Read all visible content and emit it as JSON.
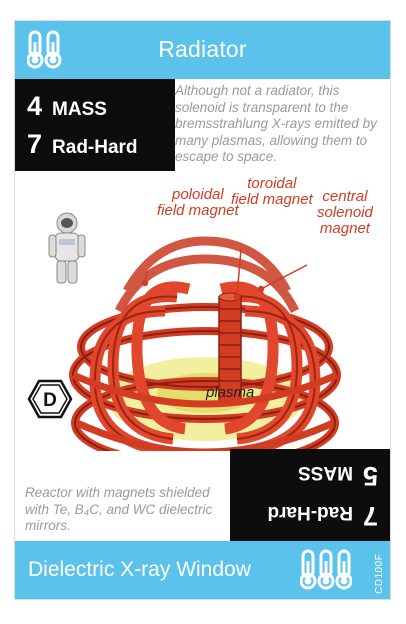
{
  "card": {
    "type_label": "Radiator",
    "name": "Dielectric X-ray Window",
    "code": "CD100F",
    "stats": [
      {
        "value": "4",
        "label": "MASS"
      },
      {
        "value": "7",
        "label": "Rad-Hard"
      }
    ],
    "stats_inverted": [
      {
        "value": "7",
        "label": "Rad-Hard"
      },
      {
        "value": "5",
        "label": "MASS"
      }
    ],
    "flavor_text": "Although not a radiator, this solenoid is transparent to the bremsstrahlung X-rays emitted by many plasmas, allowing them to escape to space.",
    "footnote": "Reactor with magnets shielded with Te, B₄C, and WC dielectric mirrors.",
    "badge_letter": "D",
    "diagram_labels": {
      "poloidal": "poloidal\nfield magnet",
      "toroidal": "toroidal\nfield magnet",
      "central": "central\nsolenoid\nmagnet",
      "plasma": "plasma"
    },
    "colors": {
      "bar": "#5bc2ec",
      "stat_box": "#0d0d0d",
      "magnet_red": "#d23c22",
      "plasma_yellow": "#f1ee9a"
    },
    "icons": {
      "top": "thermometer-pair-icon",
      "bottom": "thermometer-triple-icon"
    }
  }
}
